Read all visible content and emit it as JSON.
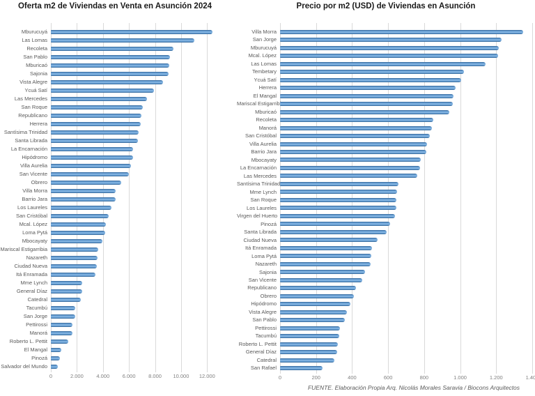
{
  "footer": {
    "text": "FUENTE. Elaboración Propia Arq. Nicolás Morales Saravia / Biocons Arquitectos"
  },
  "colors": {
    "bar_fill": "#6FA8DC",
    "bar_edge": "#2E5F8F",
    "gridline": "#D9D9D9",
    "label_text": "#595959",
    "title_text": "#1A1A1A"
  },
  "chart_data": [
    {
      "type": "bar",
      "orientation": "horizontal",
      "title": "Oferta m2 de Viviendas en Venta en Asunción 2024",
      "xlabel": "",
      "ylabel": "",
      "grid": true,
      "legend": false,
      "xlim": [
        0,
        13000
      ],
      "xticks": [
        0,
        2000,
        4000,
        6000,
        8000,
        10000,
        12000
      ],
      "xtick_labels": [
        "0",
        "2.000",
        "4.000",
        "6.000",
        "8.000",
        "10.000",
        "12.000"
      ],
      "categories": [
        "Mburucuyá",
        "Las Lomas",
        "Recoleta",
        "San Pablo",
        "Mburicaó",
        "Sajonia",
        "Vista Alegre",
        "Ycuá Satí",
        "Las Mercedes",
        "San Roque",
        "Republicano",
        "Herrera",
        "Santísima Trinidad",
        "Santa Librada",
        "La Encarnación",
        "Hipódromo",
        "Villa Aurelia",
        "San Vicente",
        "Obrero",
        "Villa Morra",
        "Barrio Jara",
        "Los Laureles",
        "San Cristóbal",
        "Mcal. López",
        "Loma Pytá",
        "Mbocayaty",
        "Mariscal Estigarribia",
        "Nazareth",
        "Ciudad Nueva",
        "Itá Enramada",
        "Mme Lynch",
        "General Díaz",
        "Catedral",
        "Tacumbú",
        "San Jorge",
        "Pettirossi",
        "Manorá",
        "Roberto L. Pettit",
        "El Mangal",
        "Pinozá",
        "Salvador del Mundo"
      ],
      "values": [
        12400,
        11000,
        9400,
        9150,
        9070,
        9030,
        8600,
        7900,
        7400,
        7070,
        6940,
        6890,
        6760,
        6680,
        6310,
        6290,
        6130,
        5970,
        5430,
        4970,
        4960,
        4660,
        4450,
        4240,
        4180,
        3970,
        3620,
        3610,
        3520,
        3400,
        2430,
        2420,
        2310,
        1860,
        1850,
        1660,
        1640,
        1330,
        790,
        670,
        560
      ]
    },
    {
      "type": "bar",
      "orientation": "horizontal",
      "title": "Precio por m2 (USD) de Viviendas en Asunción",
      "xlabel": "",
      "ylabel": "",
      "grid": true,
      "legend": false,
      "xlim": [
        0,
        1400
      ],
      "xticks": [
        0,
        200,
        400,
        600,
        800,
        1000,
        1200,
        1400
      ],
      "xtick_labels": [
        "0",
        "200",
        "400",
        "600",
        "800",
        "1.000",
        "1.200",
        "1.400"
      ],
      "categories": [
        "Villa Morra",
        "San Jorge",
        "Mburucuyá",
        "Mcal. López",
        "Las Lomas",
        "Tembetary",
        "Ycuá Satí",
        "Herrera",
        "El Mangal",
        "Mariscal Estigarribia",
        "Mburicaó",
        "Recoleta",
        "Manorá",
        "San Cristóbal",
        "Villa Aurelia",
        "Barrio Jara",
        "Mbocayaty",
        "La Encarnación",
        "Las Mercedes",
        "Santísima Trinidad",
        "Mme Lynch",
        "San Roque",
        "Los Laureles",
        "Virgen del Huerto",
        "Pinozá",
        "Santa Librada",
        "Ciudad Nueva",
        "Itá Enramada",
        "Loma Pytá",
        "Nazareth",
        "Sajonia",
        "San Vicente",
        "Republicano",
        "Obrero",
        "Hipódromo",
        "Vista Alegre",
        "San Pablo",
        "Pettirossi",
        "Tacumbú",
        "Roberto L. Pettit",
        "General Díaz",
        "Catedral",
        "San Rafael"
      ],
      "values": [
        1350,
        1230,
        1215,
        1210,
        1140,
        1020,
        1005,
        975,
        962,
        958,
        938,
        851,
        842,
        832,
        816,
        814,
        781,
        777,
        760,
        658,
        650,
        647,
        644,
        638,
        612,
        590,
        542,
        510,
        507,
        503,
        470,
        455,
        422,
        410,
        389,
        370,
        358,
        333,
        329,
        322,
        318,
        303,
        236
      ]
    }
  ]
}
